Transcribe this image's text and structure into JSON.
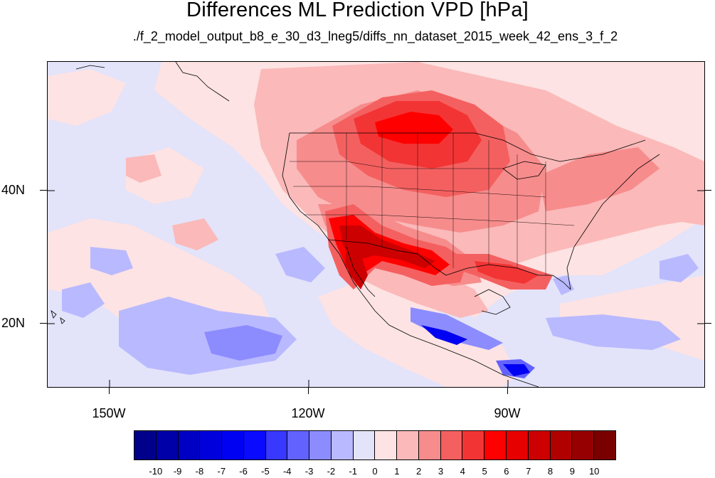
{
  "title": "Differences ML Prediction VPD [hPa]",
  "subtitle": "./f_2_model_output_b8_e_30_d3_lneg5/diffs_nn_dataset_2015_week_42_ens_3_f_2",
  "map": {
    "projection": "cylindrical equidistant",
    "lon_range": [
      -159.5,
      -60.5
    ],
    "lat_range": [
      11.0,
      60.0
    ],
    "lat_labels": [
      "40N",
      "20N"
    ],
    "lon_labels": [
      "150W",
      "120W",
      "90W"
    ],
    "features": [
      "coastlines",
      "US state boundaries"
    ]
  },
  "colorbar": {
    "labels": [
      "-10",
      "-9",
      "-8",
      "-7",
      "-6",
      "-5",
      "-4",
      "-3",
      "-2",
      "-1",
      "0",
      "1",
      "2",
      "3",
      "4",
      "5",
      "6",
      "7",
      "8",
      "9",
      "10"
    ],
    "colors": [
      "#00008b",
      "#0000a8",
      "#0000c4",
      "#0000dd",
      "#0000f2",
      "#0a0aff",
      "#3838ff",
      "#6262ff",
      "#8c8cff",
      "#b9b9ff",
      "#e3e3fa",
      "#fde3e3",
      "#fbb9b9",
      "#f78c8c",
      "#f46060",
      "#f33434",
      "#ff0000",
      "#e60000",
      "#cc0000",
      "#b10000",
      "#960000",
      "#7a0000"
    ]
  },
  "field_colors": {
    "ocean_light_blue": "#e3e3fa",
    "neg_2": "#b9b9ff",
    "neg_3": "#8c8cff",
    "neg_4": "#6262ff",
    "neg_6": "#0000f2",
    "pos_1": "#fde3e3",
    "pos_2": "#fbb9b9",
    "pos_3": "#f78c8c",
    "pos_4": "#f46060",
    "pos_5": "#f33434",
    "pos_6": "#ff0000",
    "pos_7": "#e60000",
    "pos_8": "#cc0000"
  }
}
